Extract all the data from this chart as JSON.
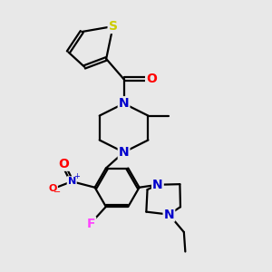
{
  "bg_color": "#e8e8e8",
  "bond_color": "#000000",
  "bond_width": 1.6,
  "atom_colors": {
    "N": "#0000cc",
    "O": "#ff0000",
    "S": "#cccc00",
    "F": "#ff44ff"
  },
  "font_size_atom": 10,
  "font_size_small": 8,
  "xlim": [
    0,
    10
  ],
  "ylim": [
    0,
    10
  ]
}
